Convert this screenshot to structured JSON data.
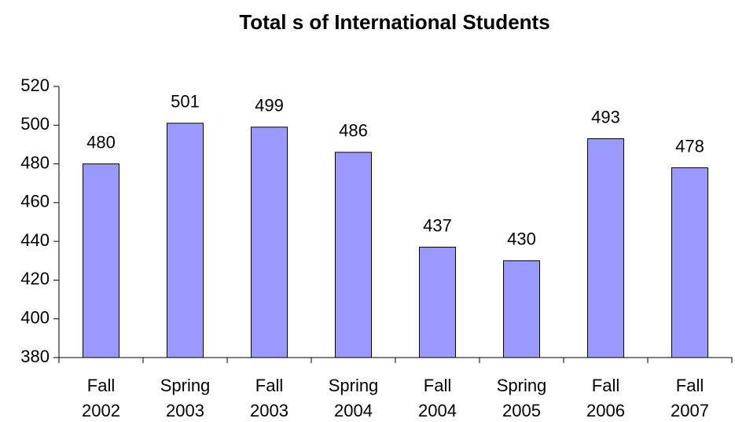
{
  "chart_data": {
    "type": "bar",
    "title": "Total s of International Students",
    "categories": [
      "Fall 2002",
      "Spring 2003",
      "Fall 2003",
      "Spring 2004",
      "Fall 2004",
      "Spring 2005",
      "Fall 2006",
      "Fall 2007"
    ],
    "values": [
      480,
      501,
      499,
      486,
      437,
      430,
      493,
      478
    ],
    "color": "#9999ff",
    "ylim": [
      380,
      520
    ],
    "yticks": [
      380,
      400,
      420,
      440,
      460,
      480,
      500,
      520
    ],
    "grid": false
  }
}
